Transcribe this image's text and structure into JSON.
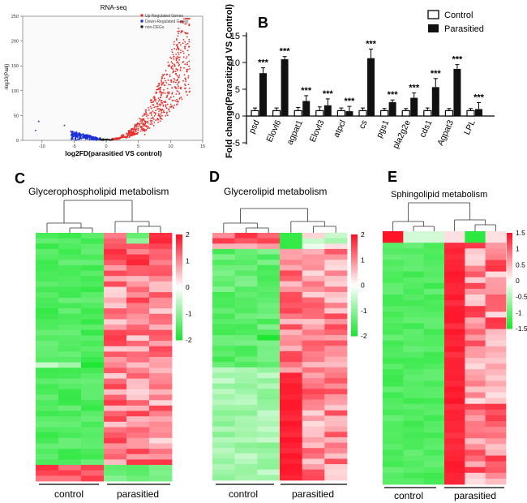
{
  "chart_data": [
    {
      "panel": "A",
      "type": "scatter",
      "title": "RNA-seq",
      "xlabel": "log2FD(parasitied VS control)",
      "ylabel": "-log10(Padj)",
      "xlim": [
        -13,
        15
      ],
      "ylim": [
        0,
        250
      ],
      "xticks": [
        -10,
        -5,
        0,
        5,
        10,
        15
      ],
      "yticks": [
        0,
        50,
        100,
        150,
        200,
        250
      ],
      "legend": [
        "Up-Regulated Genes",
        "Down-Regulated Genes",
        "non-DEGs"
      ],
      "series": [
        {
          "name": "Up-Regulated Genes",
          "color": "#e8302a",
          "description": "curve rising from x=1 to x=13"
        },
        {
          "name": "Down-Regulated Genes",
          "color": "#1a2fd6",
          "description": "cluster x=-5 to -1, y<20"
        },
        {
          "name": "non-DEGs",
          "color": "#222222",
          "description": "near origin"
        }
      ]
    },
    {
      "panel": "B",
      "type": "bar",
      "ylabel": "Fold change(Parasitized VS Control)",
      "ylim": [
        -5,
        15
      ],
      "yticks": [
        -5,
        0,
        5,
        10,
        15
      ],
      "categories": [
        "psd",
        "Elovl6",
        "agpat1",
        "Elovl3",
        "atpcl",
        "cs",
        "pgs1",
        "pla2g2e",
        "cds1",
        "Agpat3",
        "LPL"
      ],
      "series": [
        {
          "name": "Control",
          "values": [
            1,
            1,
            1,
            1,
            1,
            1,
            1,
            1,
            1,
            1,
            1
          ],
          "errors": [
            0.5,
            0.5,
            0.6,
            0.7,
            0.5,
            0.5,
            0.4,
            0.4,
            0.5,
            0.4,
            0.4
          ]
        },
        {
          "name": "Parasitied",
          "values": [
            8,
            10.6,
            2.8,
            2.0,
            0.9,
            10.8,
            2.6,
            3.4,
            5.4,
            8.8,
            1.3
          ],
          "errors": [
            1.0,
            0.5,
            1.0,
            1.2,
            0.9,
            1.7,
            0.4,
            0.9,
            1.6,
            0.8,
            1.2
          ]
        }
      ],
      "significance": "***"
    },
    {
      "panel": "C",
      "type": "heatmap",
      "title": "Glycerophospholipid metabolism",
      "groups": [
        "control",
        "parasitied"
      ],
      "scale_ticks": [
        "2",
        "1",
        "0",
        "-1",
        "-2"
      ],
      "scale_range": [
        -2,
        2
      ]
    },
    {
      "panel": "D",
      "type": "heatmap",
      "title": "Glycerolipid metabolism",
      "groups": [
        "control",
        "parasitied"
      ],
      "scale_ticks": [
        "2",
        "1",
        "0",
        "-1",
        "-2"
      ],
      "scale_range": [
        -2,
        2
      ]
    },
    {
      "panel": "E",
      "type": "heatmap",
      "title": "Sphingolipid metabolism",
      "groups": [
        "control",
        "parasitied"
      ],
      "scale_ticks": [
        "1.5",
        "1",
        "0.5",
        "0",
        "-0.5",
        "-1",
        "-1.5"
      ],
      "scale_range": [
        -1.5,
        1.5
      ]
    }
  ],
  "colors": {
    "up": "#e8302a",
    "down": "#1a2fd6",
    "heat_high": "#e8152a",
    "heat_low": "#1fe03a",
    "bar_dark": "#111111"
  }
}
